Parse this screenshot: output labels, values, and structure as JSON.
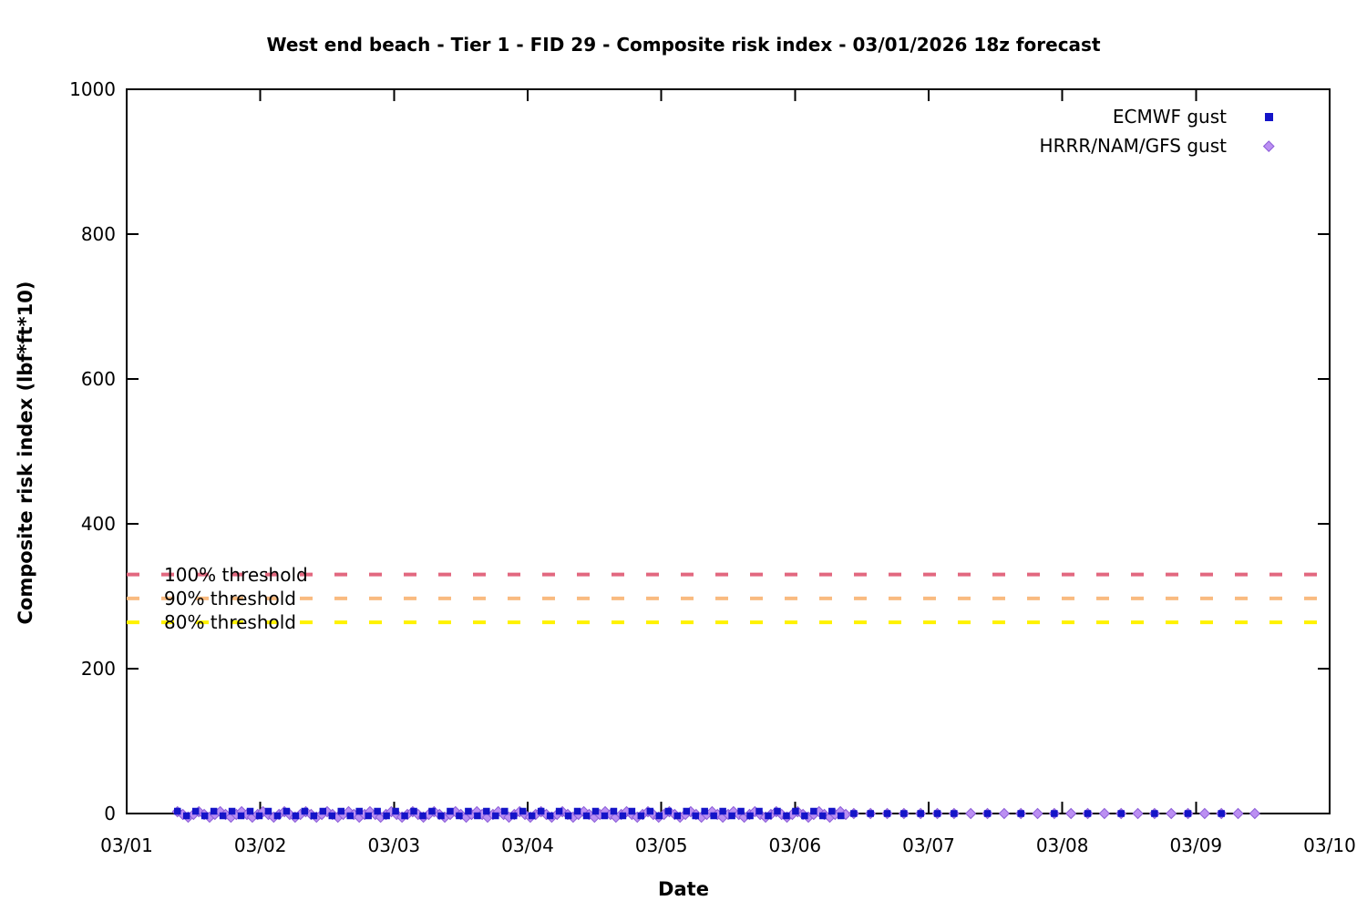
{
  "title": "West end beach - Tier 1 - FID 29 - Composite risk index - 03/01/2026 18z forecast",
  "x_axis": {
    "label": "Date",
    "ticks": [
      "03/01",
      "03/02",
      "03/03",
      "03/04",
      "03/05",
      "03/06",
      "03/07",
      "03/08",
      "03/09",
      "03/10"
    ]
  },
  "y_axis": {
    "label": "Composite risk index (lbf*ft*10)",
    "ticks": [
      "0",
      "200",
      "400",
      "600",
      "800",
      "1000"
    ],
    "range": [
      0,
      1000
    ]
  },
  "legend": {
    "items": [
      {
        "label": "ECMWF gust",
        "marker": "square-icon",
        "color": "#1414c8"
      },
      {
        "label": "HRRR/NAM/GFS gust",
        "marker": "diamond-icon",
        "color": "#bb8ff2"
      }
    ]
  },
  "thresholds": [
    {
      "label": "100% threshold",
      "value": 330,
      "color": "#e2687f"
    },
    {
      "label": "90% threshold",
      "value": 297,
      "color": "#f9bb80"
    },
    {
      "label": "80% threshold",
      "value": 264,
      "color": "#fff200"
    }
  ],
  "chart_data": {
    "type": "scatter",
    "title": "West end beach - Tier 1 - FID 29 - Composite risk index - 03/01/2026 18z forecast",
    "xlabel": "Date",
    "ylabel": "Composite risk index (lbf*ft*10)",
    "x_tick_labels": [
      "03/01",
      "03/02",
      "03/03",
      "03/04",
      "03/05",
      "03/06",
      "03/07",
      "03/08",
      "03/09",
      "03/10"
    ],
    "ylim": [
      0,
      1000
    ],
    "y_ticks": [
      0,
      200,
      400,
      600,
      800,
      1000
    ],
    "grid": false,
    "legend_position": "top-right-inside",
    "series": [
      {
        "name": "ECMWF gust",
        "marker": "square",
        "color": "#1414c8",
        "y_value": 0,
        "note": "all points plotted at composite risk index ~0 along the baseline",
        "x_segments_days_after_03_01": [
          {
            "from": 0.38,
            "to": 5.37,
            "step": 0.068
          },
          {
            "from": 5.44,
            "to": 6.19,
            "step": 0.125
          },
          {
            "from": 6.44,
            "to": 8.19,
            "step": 0.25
          }
        ]
      },
      {
        "name": "HRRR/NAM/GFS gust",
        "marker": "diamond",
        "color": "#bb8ff2",
        "y_value": 0,
        "note": "all points plotted at composite risk index ~0 along the baseline",
        "x_segments_days_after_03_01": [
          {
            "from": 0.38,
            "to": 5.38,
            "step": 0.04
          },
          {
            "from": 5.44,
            "to": 8.44,
            "step": 0.125
          }
        ]
      }
    ],
    "threshold_lines": [
      {
        "label": "100% threshold",
        "y": 330,
        "style": "dashed",
        "color": "#e2687f"
      },
      {
        "label": "90% threshold",
        "y": 297,
        "style": "dashed",
        "color": "#f9bb80"
      },
      {
        "label": "80% threshold",
        "y": 264,
        "style": "dashed",
        "color": "#fff200"
      }
    ]
  }
}
